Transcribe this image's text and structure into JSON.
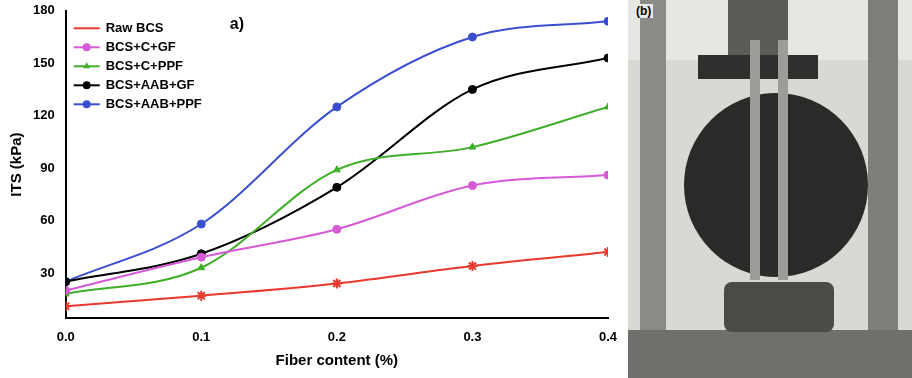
{
  "chart_data": {
    "type": "line",
    "x_label": "Fiber content (%)",
    "y_label": "ITS (kPa)",
    "annotations": [
      "a)"
    ],
    "x": [
      0,
      0.1,
      0.2,
      0.3,
      0.4
    ],
    "xlim": [
      0,
      0.4
    ],
    "xticks": [
      {
        "value": 0,
        "label": "0.0"
      },
      0.1,
      0.2,
      0.3,
      0.4
    ],
    "ylim": [
      4,
      180
    ],
    "yticks": [
      30,
      60,
      90,
      120,
      150,
      180
    ],
    "grid": false,
    "legend": "top-left",
    "series": [
      {
        "name": "Raw BCS",
        "color": "#e8392d",
        "marker": "star",
        "values": [
          11,
          17,
          24,
          34,
          42
        ]
      },
      {
        "name": "BCS+C+GF",
        "color": "#d65ad6",
        "marker": "circle",
        "values": [
          20,
          39,
          55,
          80,
          86
        ]
      },
      {
        "name": "BCS+C+PPF",
        "color": "#3fae29",
        "marker": "triangle",
        "values": [
          18,
          33,
          89,
          102,
          125
        ]
      },
      {
        "name": "BCS+AAB+GF",
        "color": "#000000",
        "marker": "circle",
        "values": [
          25,
          41,
          79,
          135,
          153
        ]
      },
      {
        "name": "BCS+AAB+PPF",
        "color": "#3a4fd0",
        "marker": "circle",
        "values": [
          25,
          58,
          125,
          165,
          174
        ]
      }
    ]
  },
  "photo_panel": {
    "label": "(b)"
  }
}
